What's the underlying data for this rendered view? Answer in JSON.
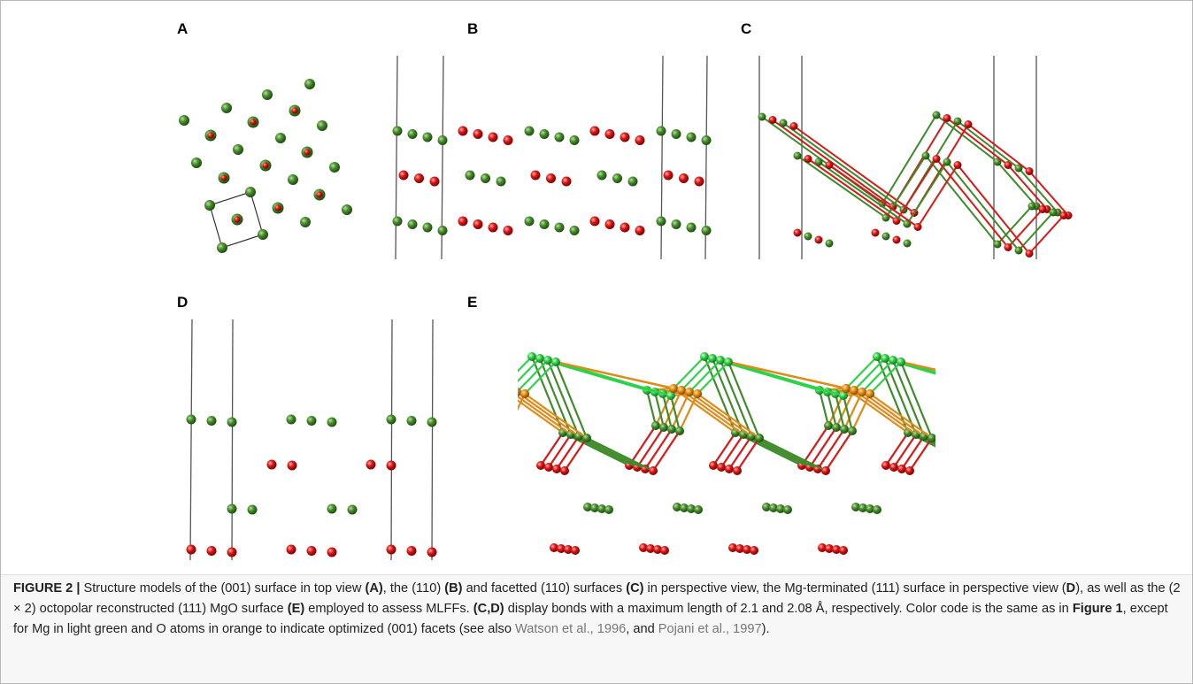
{
  "figure": {
    "panels": [
      {
        "label": "A"
      },
      {
        "label": "B"
      },
      {
        "label": "C"
      },
      {
        "label": "D"
      },
      {
        "label": "E"
      }
    ],
    "caption": {
      "segments": [
        {
          "text": "FIGURE 2 |",
          "style": "bold"
        },
        {
          "text": " Structure models of the (001) surface in top view ",
          "style": "plain"
        },
        {
          "text": "(A)",
          "style": "bold"
        },
        {
          "text": ", the (110) ",
          "style": "plain"
        },
        {
          "text": "(B)",
          "style": "bold"
        },
        {
          "text": " and facetted (110) surfaces ",
          "style": "plain"
        },
        {
          "text": "(C)",
          "style": "bold"
        },
        {
          "text": " in perspective view, the Mg-terminated (111) surface in perspective view (",
          "style": "plain"
        },
        {
          "text": "D",
          "style": "bold"
        },
        {
          "text": "), as well as the (2 × 2) octopolar reconstructed (111) MgO surface ",
          "style": "plain"
        },
        {
          "text": "(E)",
          "style": "bold"
        },
        {
          "text": " employed to assess MLFFs. ",
          "style": "plain"
        },
        {
          "text": "(C,D)",
          "style": "bold"
        },
        {
          "text": " display bonds with a maximum length of 2.1 and 2.08 Å, respectively. Color code is the same as in ",
          "style": "plain"
        },
        {
          "text": "Figure 1",
          "style": "bold"
        },
        {
          "text": ", except for Mg in light green and O atoms in orange to indicate optimized (001) facets (see also ",
          "style": "plain"
        },
        {
          "text": "Watson et al., 1996",
          "style": "link"
        },
        {
          "text": ", and ",
          "style": "plain"
        },
        {
          "text": "Pojani et al., 1997",
          "style": "link"
        },
        {
          "text": ").",
          "style": "plain"
        }
      ]
    }
  }
}
